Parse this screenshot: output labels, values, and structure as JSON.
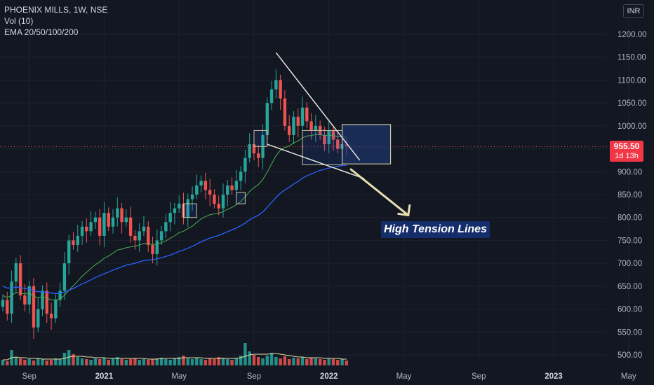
{
  "legend": {
    "symbol": "PHOENIX MILLS, 1W, NSE",
    "vol": "Vol (10)",
    "ema": "EMA 20/50/100/200"
  },
  "currency": "INR",
  "last_price": {
    "price": "955.50",
    "countdown": "1d 13h"
  },
  "annotation": "High Tension Lines",
  "colors": {
    "up": "#26a69a",
    "down": "#ef5350",
    "ema20": "#4caf50",
    "ema50": "#2962ff",
    "vol_ma": "#e8d9a0",
    "drawing": "#e6dfb0",
    "box": "#1e3a7a"
  },
  "chart_data": {
    "type": "candlestick",
    "title": "PHOENIX MILLS, 1W, NSE",
    "ylim": [
      470,
      1250
    ],
    "y_ticks": [
      "1200.00",
      "1150.00",
      "1100.00",
      "1050.00",
      "1000.00",
      "950.00",
      "900.00",
      "850.00",
      "800.00",
      "750.00",
      "700.00",
      "650.00",
      "600.00",
      "550.00",
      "500.00"
    ],
    "y_tick_values": [
      1200,
      1150,
      1100,
      1050,
      1000,
      950,
      900,
      850,
      800,
      750,
      700,
      650,
      600,
      550,
      500
    ],
    "x_ticks": [
      {
        "label": "Sep",
        "week": 6,
        "bold": false
      },
      {
        "label": "2021",
        "week": 23,
        "bold": true
      },
      {
        "label": "May",
        "week": 40,
        "bold": false
      },
      {
        "label": "Sep",
        "week": 57,
        "bold": false
      },
      {
        "label": "2022",
        "week": 74,
        "bold": true
      },
      {
        "label": "May",
        "week": 91,
        "bold": false
      },
      {
        "label": "Sep",
        "week": 108,
        "bold": false
      },
      {
        "label": "2023",
        "week": 125,
        "bold": true
      },
      {
        "label": "May",
        "week": 142,
        "bold": false
      }
    ],
    "closes": [
      620,
      590,
      660,
      700,
      630,
      610,
      650,
      560,
      600,
      640,
      590,
      580,
      620,
      640,
      700,
      750,
      740,
      760,
      780,
      770,
      790,
      800,
      760,
      810,
      780,
      800,
      820,
      790,
      800,
      760,
      750,
      770,
      780,
      740,
      720,
      750,
      770,
      790,
      810,
      820,
      830,
      800,
      840,
      850,
      870,
      880,
      860,
      850,
      830,
      820,
      850,
      870,
      860,
      880,
      900,
      930,
      960,
      940,
      930,
      980,
      1050,
      1080,
      1100,
      1060,
      1000,
      980,
      1020,
      1000,
      1040,
      1010,
      990,
      1000,
      980,
      960,
      990,
      970,
      950,
      960,
      955
    ],
    "ema20": [
      630,
      625,
      630,
      636,
      635,
      633,
      635,
      628,
      625,
      627,
      624,
      620,
      620,
      622,
      630,
      641,
      651,
      661,
      672,
      680,
      689,
      697,
      703,
      711,
      716,
      722,
      729,
      731,
      734,
      736,
      737,
      740,
      743,
      743,
      741,
      742,
      745,
      749,
      755,
      760,
      767,
      770,
      776,
      781,
      789,
      797,
      802,
      806,
      808,
      809,
      813,
      818,
      822,
      828,
      835,
      845,
      857,
      865,
      872,
      883,
      899,
      917,
      935,
      947,
      953,
      956,
      963,
      967,
      974,
      978,
      979,
      981,
      981,
      979,
      980,
      979,
      977,
      976,
      975
    ],
    "ema50": [
      650,
      646,
      646,
      648,
      647,
      645,
      644,
      640,
      638,
      638,
      637,
      635,
      634,
      634,
      637,
      641,
      645,
      650,
      655,
      659,
      664,
      669,
      673,
      677,
      681,
      685,
      689,
      692,
      696,
      698,
      700,
      703,
      706,
      707,
      708,
      710,
      712,
      715,
      718,
      722,
      726,
      729,
      733,
      737,
      742,
      747,
      751,
      755,
      758,
      761,
      765,
      769,
      773,
      777,
      782,
      788,
      795,
      800,
      805,
      812,
      822,
      833,
      844,
      853,
      860,
      866,
      873,
      879,
      886,
      891,
      895,
      899,
      903,
      905,
      908,
      910,
      912,
      913,
      914
    ],
    "volume": [
      8,
      6,
      22,
      12,
      10,
      8,
      9,
      7,
      10,
      9,
      7,
      8,
      10,
      9,
      18,
      22,
      16,
      12,
      10,
      9,
      8,
      10,
      9,
      11,
      8,
      10,
      12,
      9,
      8,
      9,
      10,
      8,
      9,
      8,
      9,
      10,
      11,
      9,
      8,
      10,
      12,
      14,
      10,
      9,
      11,
      9,
      8,
      10,
      9,
      12,
      11,
      9,
      8,
      10,
      14,
      32,
      20,
      15,
      12,
      10,
      14,
      18,
      12,
      10,
      13,
      9,
      11,
      10,
      12,
      9,
      11,
      10,
      9,
      8,
      10,
      9,
      8,
      9,
      7
    ],
    "volume_ma": [
      8,
      8,
      11,
      12,
      11,
      11,
      10,
      10,
      10,
      9,
      9,
      9,
      9,
      9,
      10,
      12,
      13,
      13,
      13,
      12,
      12,
      11,
      11,
      11,
      10,
      10,
      10,
      10,
      10,
      10,
      10,
      10,
      10,
      9,
      9,
      9,
      10,
      10,
      10,
      10,
      10,
      11,
      11,
      11,
      11,
      11,
      10,
      10,
      10,
      10,
      10,
      10,
      10,
      10,
      11,
      13,
      15,
      16,
      16,
      16,
      16,
      17,
      17,
      16,
      15,
      14,
      13,
      12,
      12,
      11,
      11,
      11,
      11,
      10,
      10,
      10,
      10,
      9,
      9
    ]
  },
  "drawings": {
    "upper_trendline": [
      {
        "week": 62,
        "price": 1160
      },
      {
        "week": 81,
        "price": 925
      }
    ],
    "lower_trendline": [
      {
        "week": 60,
        "price": 960
      },
      {
        "week": 82,
        "price": 885
      }
    ],
    "target_box": {
      "week_start": 77,
      "week_end": 88,
      "price_top": 1003,
      "price_bottom": 917
    },
    "consolidation_boxes": [
      {
        "week_start": 41,
        "week_end": 44,
        "price_top": 830,
        "price_bottom": 800
      },
      {
        "week_start": 53,
        "week_end": 55,
        "price_top": 855,
        "price_bottom": 830
      },
      {
        "week_start": 57,
        "week_end": 60,
        "price_top": 990,
        "price_bottom": 955
      },
      {
        "week_start": 68,
        "week_end": 77,
        "price_top": 990,
        "price_bottom": 915
      }
    ],
    "arrow": {
      "from": {
        "week": 79,
        "price": 905
      },
      "to": {
        "week": 92,
        "price": 805
      }
    }
  }
}
